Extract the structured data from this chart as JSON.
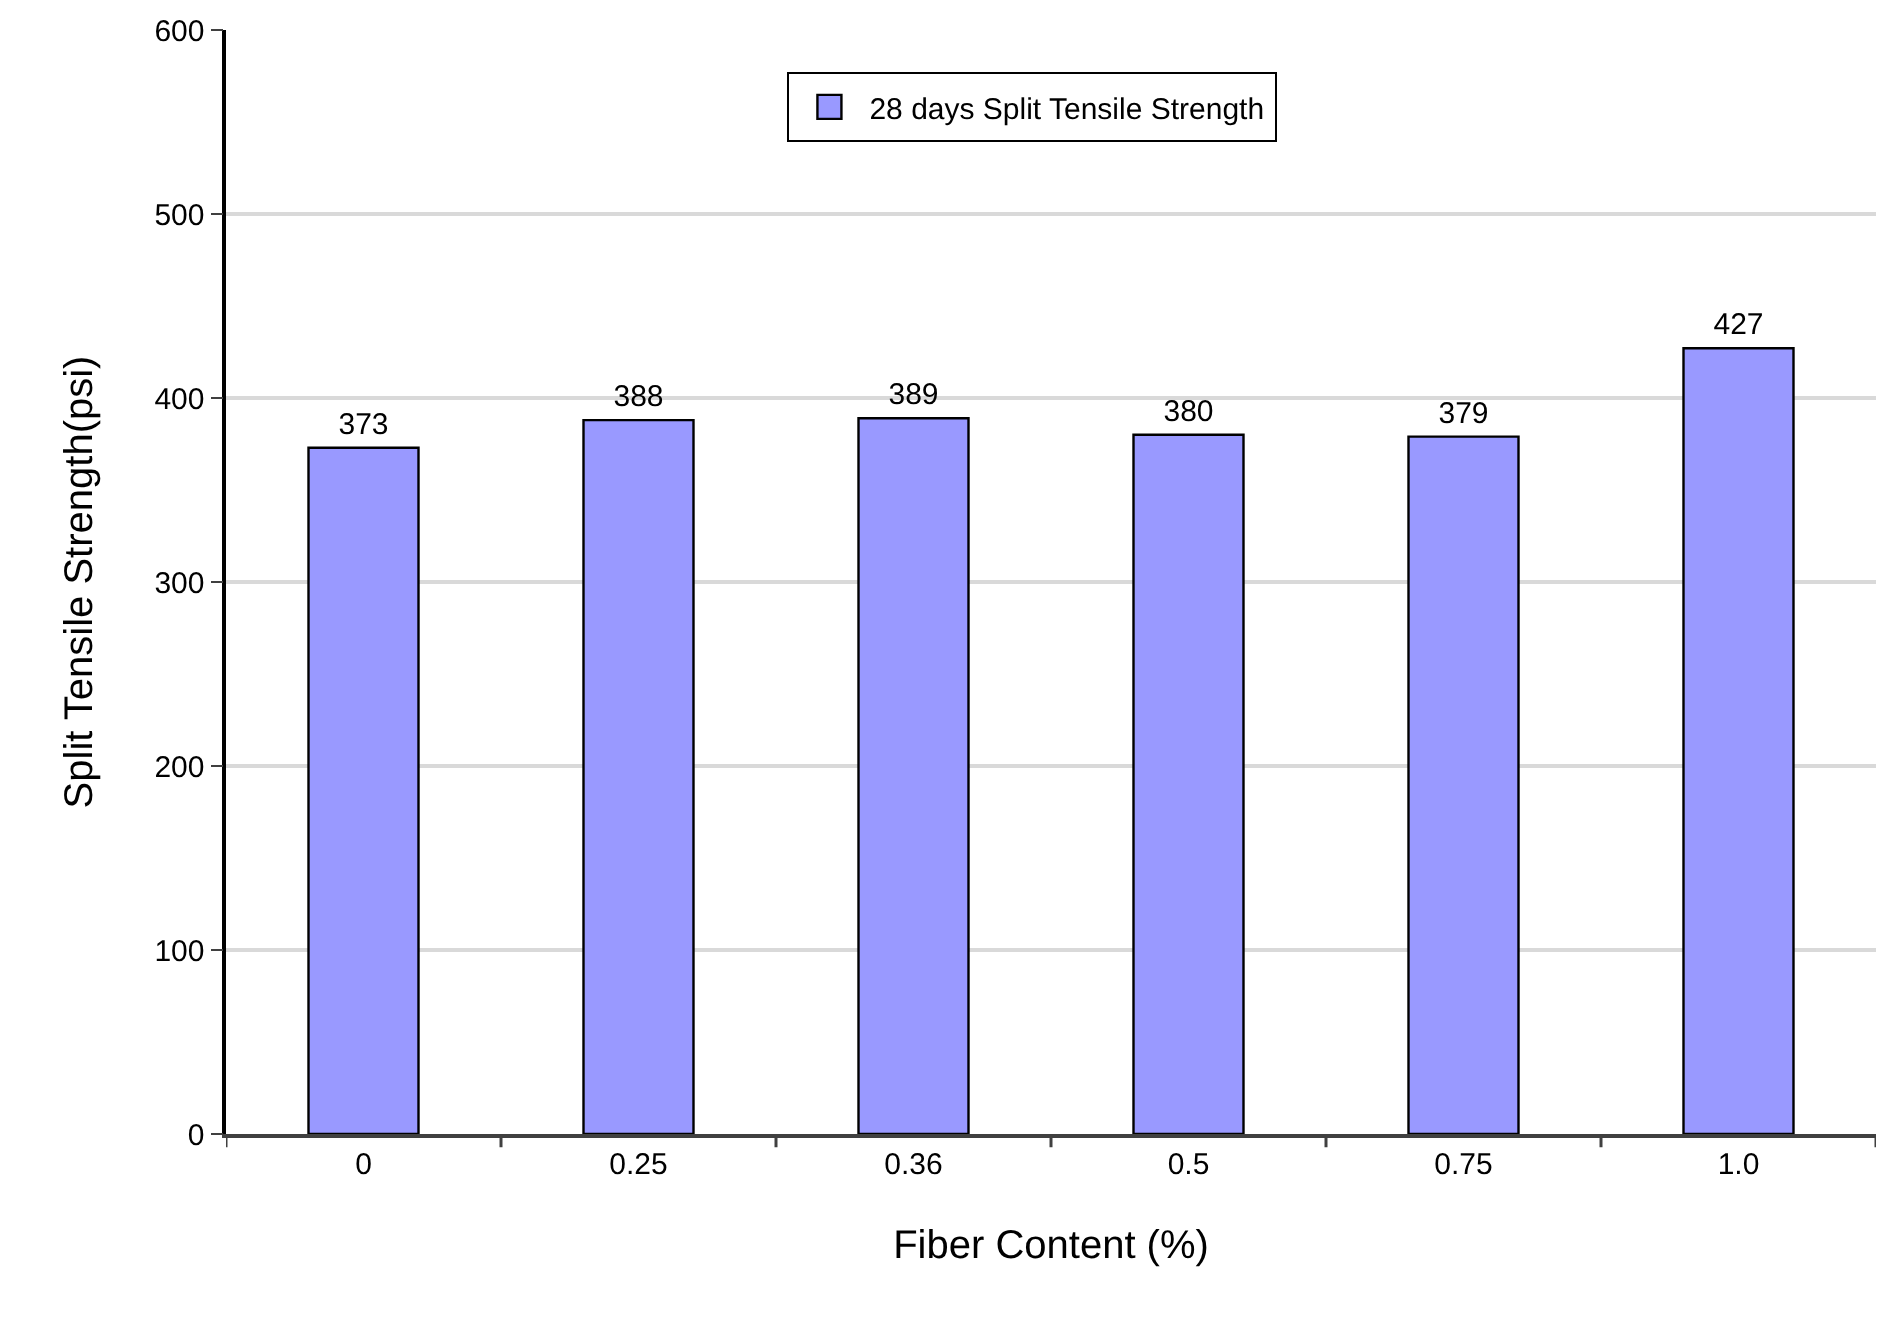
{
  "chart_data": {
    "type": "bar",
    "categories": [
      "0",
      "0.25",
      "0.36",
      "0.5",
      "0.75",
      "1.0"
    ],
    "series": [
      {
        "name": "28 days Split Tensile Strength",
        "color": "#9999ff",
        "values": [
          373,
          388,
          389,
          380,
          379,
          427
        ]
      }
    ],
    "xlabel": "Fiber Content (%)",
    "ylabel": "Split Tensile Strength(psi)",
    "ylim": [
      0,
      600
    ],
    "yticks": [
      0,
      100,
      200,
      300,
      400,
      500,
      600
    ],
    "grid": "y",
    "legend": "top",
    "data_labels": true
  }
}
